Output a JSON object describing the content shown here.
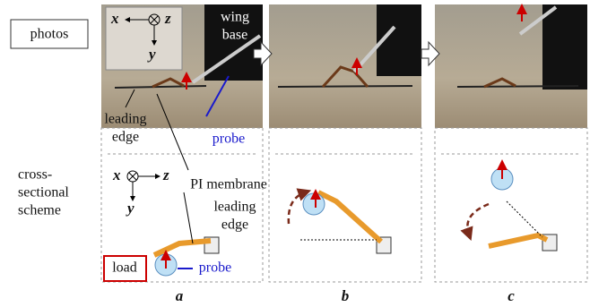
{
  "row_labels": {
    "photos": "photos",
    "scheme": [
      "cross-",
      "sectional",
      "scheme"
    ]
  },
  "photo_axes": {
    "x": "x",
    "z": "z",
    "y": "y"
  },
  "scheme_axes": {
    "x": "x",
    "z": "z",
    "y": "y"
  },
  "annotations": {
    "wing_base": [
      "wing",
      "base"
    ],
    "leading_edge_photo": [
      "leading",
      "edge"
    ],
    "probe_photo": "probe",
    "pi_membrane": "PI membrane",
    "leading_edge_scheme": [
      "leading",
      "edge"
    ],
    "load": "load",
    "probe_scheme": "probe"
  },
  "panel_labels": [
    "a",
    "b",
    "c"
  ]
}
